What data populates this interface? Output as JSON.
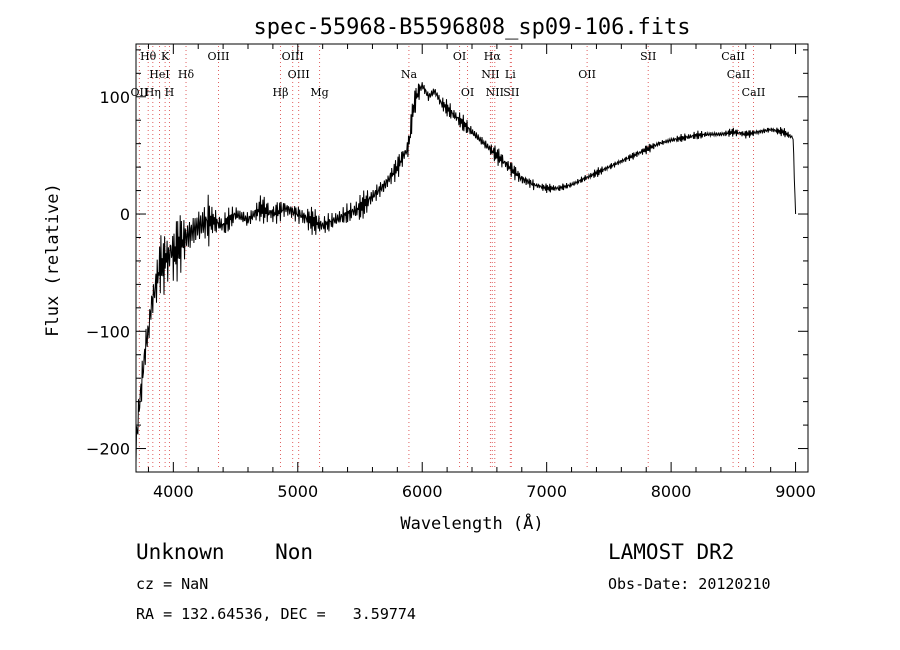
{
  "info": {
    "classification": "Unknown    Non",
    "redshift": "cz = NaN",
    "coordinates": "RA = 132.64536, DEC =   3.59774",
    "survey": "LAMOST DR2",
    "obs_date": "Obs-Date: 20120210"
  },
  "chart_data": {
    "type": "line",
    "title": "spec-55968-B5596808_sp09-106.fits",
    "xlabel": "Wavelength (Å)",
    "ylabel": "Flux (relative)",
    "xlim": [
      3700,
      9100
    ],
    "ylim": [
      -220,
      145
    ],
    "xticks": [
      4000,
      5000,
      6000,
      7000,
      8000,
      9000
    ],
    "yticks": [
      -200,
      -100,
      0,
      100
    ],
    "grid": false,
    "series": [
      {
        "color": "#000000",
        "x": [
          3700,
          3720,
          3740,
          3760,
          3780,
          3800,
          3820,
          3840,
          3860,
          3880,
          3900,
          3920,
          3940,
          3960,
          3980,
          4000,
          4050,
          4100,
          4150,
          4200,
          4300,
          4400,
          4500,
          4600,
          4700,
          4800,
          4900,
          5000,
          5100,
          5200,
          5300,
          5400,
          5500,
          5600,
          5700,
          5800,
          5850,
          5880,
          5900,
          5920,
          5950,
          6000,
          6050,
          6100,
          6150,
          6200,
          6300,
          6400,
          6500,
          6600,
          6700,
          6800,
          6900,
          7000,
          7100,
          7200,
          7300,
          7400,
          7500,
          7600,
          7700,
          7800,
          7900,
          8000,
          8100,
          8200,
          8300,
          8400,
          8500,
          8600,
          8700,
          8800,
          8900,
          8980,
          9000
        ],
        "y": [
          -200,
          -170,
          -150,
          -130,
          -110,
          -100,
          -80,
          -70,
          -60,
          -50,
          -40,
          -45,
          -35,
          -40,
          -30,
          -35,
          -25,
          -20,
          -15,
          -10,
          -5,
          -10,
          0,
          -5,
          5,
          0,
          5,
          0,
          -5,
          -10,
          -5,
          0,
          5,
          15,
          25,
          40,
          50,
          55,
          65,
          85,
          100,
          110,
          100,
          105,
          95,
          90,
          80,
          70,
          60,
          50,
          40,
          30,
          25,
          22,
          22,
          25,
          30,
          35,
          40,
          45,
          50,
          55,
          60,
          63,
          65,
          67,
          68,
          68,
          70,
          68,
          70,
          72,
          70,
          65,
          0
        ]
      }
    ],
    "lines": [
      {
        "label": "Hθ",
        "x": 3798,
        "row": 1
      },
      {
        "label": "K",
        "x": 3934,
        "row": 1
      },
      {
        "label": "OIII",
        "x": 4363,
        "row": 1
      },
      {
        "label": "OIII",
        "x": 4959,
        "row": 1
      },
      {
        "label": "OI",
        "x": 6300,
        "row": 1
      },
      {
        "label": "Hα",
        "x": 6563,
        "row": 1
      },
      {
        "label": "SII",
        "x": 7816,
        "row": 1
      },
      {
        "label": "CaII",
        "x": 8498,
        "row": 1
      },
      {
        "label": "HeI",
        "x": 3889,
        "row": 2
      },
      {
        "label": "Hδ",
        "x": 4102,
        "row": 2
      },
      {
        "label": "OIII",
        "x": 5007,
        "row": 2
      },
      {
        "label": "Na",
        "x": 5893,
        "row": 2
      },
      {
        "label": "NII",
        "x": 6548,
        "row": 2
      },
      {
        "label": "Li",
        "x": 6708,
        "row": 2
      },
      {
        "label": "OII",
        "x": 7325,
        "row": 2
      },
      {
        "label": "CaII",
        "x": 8542,
        "row": 2
      },
      {
        "label": "OII",
        "x": 3727,
        "row": 3
      },
      {
        "label": "Hη",
        "x": 3835,
        "row": 3
      },
      {
        "label": "H",
        "x": 3969,
        "row": 3
      },
      {
        "label": "Hβ",
        "x": 4861,
        "row": 3
      },
      {
        "label": "Mg",
        "x": 5175,
        "row": 3
      },
      {
        "label": "OI",
        "x": 6364,
        "row": 3
      },
      {
        "label": "NII",
        "x": 6583,
        "row": 3
      },
      {
        "label": "SII",
        "x": 6716,
        "row": 3
      },
      {
        "label": "CaII",
        "x": 8662,
        "row": 3
      }
    ]
  }
}
